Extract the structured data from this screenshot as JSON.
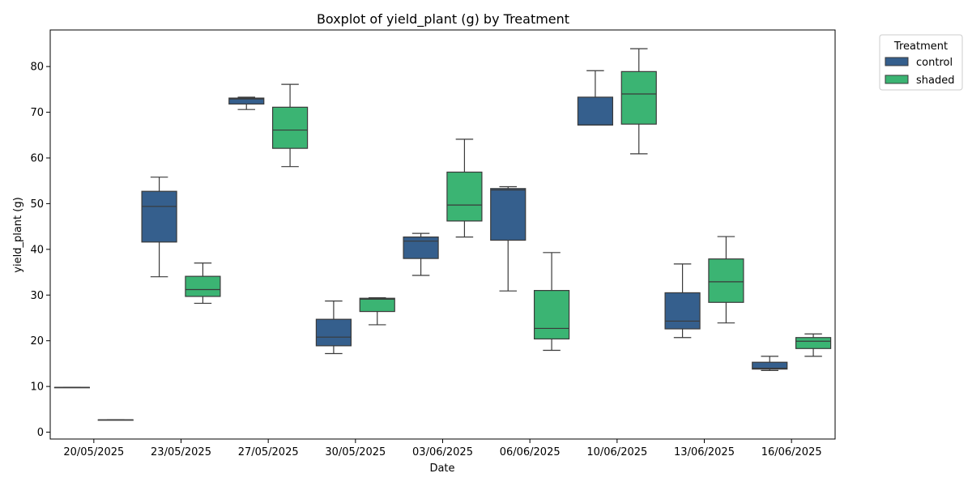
{
  "chart_data": {
    "type": "boxplot",
    "title": "Boxplot of yield_plant (g) by Treatment",
    "xlabel": "Date",
    "ylabel": "yield_plant (g)",
    "ylim": [
      -1.5,
      88
    ],
    "yticks": [
      0,
      10,
      20,
      30,
      40,
      50,
      60,
      70,
      80
    ],
    "grid": false,
    "legend": {
      "title": "Treatment",
      "position": "outside-top-right"
    },
    "categories": [
      "20/05/2025",
      "23/05/2025",
      "27/05/2025",
      "30/05/2025",
      "03/06/2025",
      "06/06/2025",
      "10/06/2025",
      "13/06/2025",
      "16/06/2025"
    ],
    "series": [
      {
        "name": "control",
        "color": "#355f8d",
        "boxes": [
          {
            "min": 9.8,
            "q1": 9.8,
            "median": 9.8,
            "q3": 9.8,
            "max": 9.8
          },
          {
            "min": 34.0,
            "q1": 41.6,
            "median": 49.4,
            "q3": 52.7,
            "max": 55.8
          },
          {
            "min": 70.6,
            "q1": 71.8,
            "median": 72.9,
            "q3": 73.1,
            "max": 73.3
          },
          {
            "min": 17.2,
            "q1": 18.9,
            "median": 20.8,
            "q3": 24.7,
            "max": 28.7
          },
          {
            "min": 34.3,
            "q1": 38.0,
            "median": 41.8,
            "q3": 42.7,
            "max": 43.5
          },
          {
            "min": 30.9,
            "q1": 42.0,
            "median": 53.0,
            "q3": 53.3,
            "max": 53.7
          },
          {
            "min": 67.2,
            "q1": 67.2,
            "median": 67.2,
            "q3": 73.3,
            "max": 79.1
          },
          {
            "min": 20.7,
            "q1": 22.6,
            "median": 24.3,
            "q3": 30.5,
            "max": 36.8
          },
          {
            "min": 13.5,
            "q1": 13.8,
            "median": 14.0,
            "q3": 15.3,
            "max": 16.6
          }
        ]
      },
      {
        "name": "shaded",
        "color": "#3bb473",
        "boxes": [
          {
            "min": 2.7,
            "q1": 2.7,
            "median": 2.7,
            "q3": 2.7,
            "max": 2.7
          },
          {
            "min": 28.2,
            "q1": 29.7,
            "median": 31.2,
            "q3": 34.1,
            "max": 37.0
          },
          {
            "min": 58.1,
            "q1": 62.1,
            "median": 66.1,
            "q3": 71.1,
            "max": 76.1
          },
          {
            "min": 23.5,
            "q1": 26.4,
            "median": 29.1,
            "q3": 29.3,
            "max": 29.4
          },
          {
            "min": 42.7,
            "q1": 46.2,
            "median": 49.7,
            "q3": 56.9,
            "max": 64.1
          },
          {
            "min": 17.9,
            "q1": 20.4,
            "median": 22.7,
            "q3": 31.0,
            "max": 39.3
          },
          {
            "min": 60.9,
            "q1": 67.4,
            "median": 74.0,
            "q3": 78.9,
            "max": 83.9
          },
          {
            "min": 23.9,
            "q1": 28.4,
            "median": 32.9,
            "q3": 37.9,
            "max": 42.8
          },
          {
            "min": 16.6,
            "q1": 18.3,
            "median": 19.9,
            "q3": 20.7,
            "max": 21.5
          }
        ]
      }
    ]
  }
}
